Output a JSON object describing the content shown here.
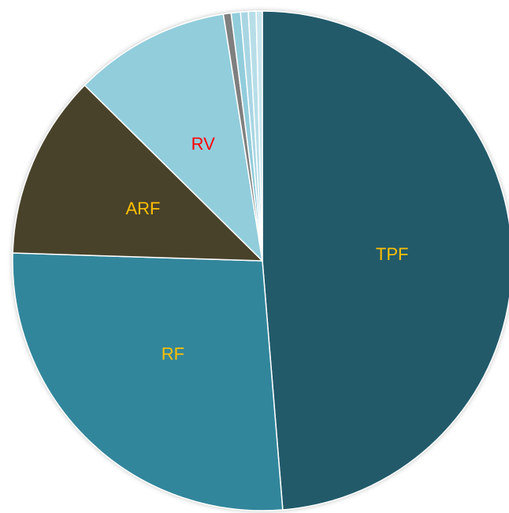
{
  "chart_data": {
    "type": "pie",
    "categories": [
      "TPF",
      "RF",
      "ARF",
      "RV",
      null,
      null,
      null,
      null,
      null
    ],
    "values": [
      48.7,
      26.8,
      11.9,
      10.1,
      0.5,
      0.6,
      0.5,
      0.5,
      0.4
    ],
    "colors": [
      "#215a6a",
      "#31869b",
      "#4a432b",
      "#92cddc",
      "#7f7f7f",
      "#92cddc",
      "#a9d6e3",
      "#b7dee8",
      "#c9e6ee"
    ],
    "label_colors": [
      "#ffc000",
      "#ffc000",
      "#ffc000",
      "#ff0000",
      null,
      null,
      null,
      null,
      null
    ]
  }
}
